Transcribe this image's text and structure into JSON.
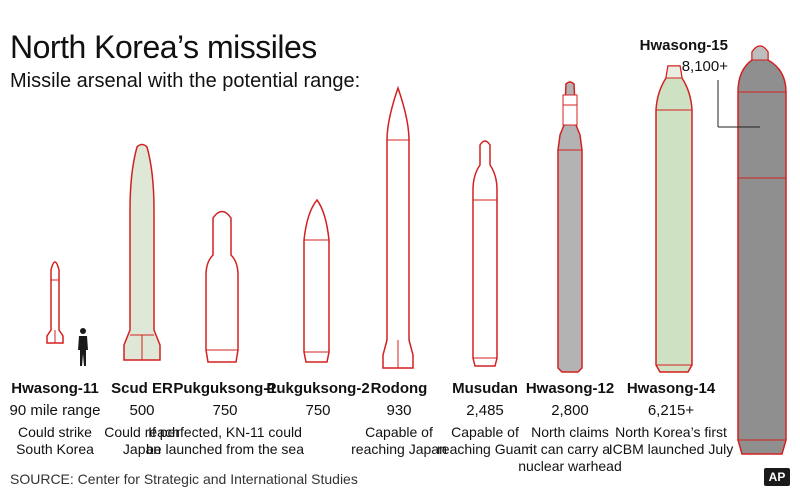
{
  "title": "North Korea’s missiles",
  "subtitle": "Missile arsenal with the potential range:",
  "missiles": [
    {
      "name": "Hwasong-11",
      "range": "90 mile range",
      "note": "Could strike\nSouth Korea",
      "fill": "#ffffff"
    },
    {
      "name": "Scud ER",
      "range": "500",
      "note": "Could reach\nJapan",
      "fill": "#dfe8d6"
    },
    {
      "name": "Pukguksong-1",
      "range": "750",
      "note": "If perfected, KN-11 could\nbe launched from the sea",
      "fill": "#ffffff"
    },
    {
      "name": "Pukguksong-2",
      "range": "750",
      "note": "",
      "fill": "#ffffff"
    },
    {
      "name": "Rodong",
      "range": "930",
      "note": "Capable of\nreaching Japan",
      "fill": "#ffffff"
    },
    {
      "name": "Musudan",
      "range": "2,485",
      "note": "Capable of\nreaching Guam",
      "fill": "#ffffff"
    },
    {
      "name": "Hwasong-12",
      "range": "2,800",
      "note": "North claims\nit can carry a\nnuclear warhead",
      "fill": "#b3b3b3"
    },
    {
      "name": "Hwasong-14",
      "range": "6,215+",
      "note": "North Korea’s first\nICBM launched July",
      "fill": "#cfe1c3"
    },
    {
      "name": "Hwasong-15",
      "range": "8,100+",
      "note": "",
      "fill": "#8f8f8f"
    }
  ],
  "source": "SOURCE: Center for Strategic and International Studies",
  "agency_logo": "AP",
  "colors": {
    "outline": "#d42020",
    "person": "#1a1a1a"
  }
}
